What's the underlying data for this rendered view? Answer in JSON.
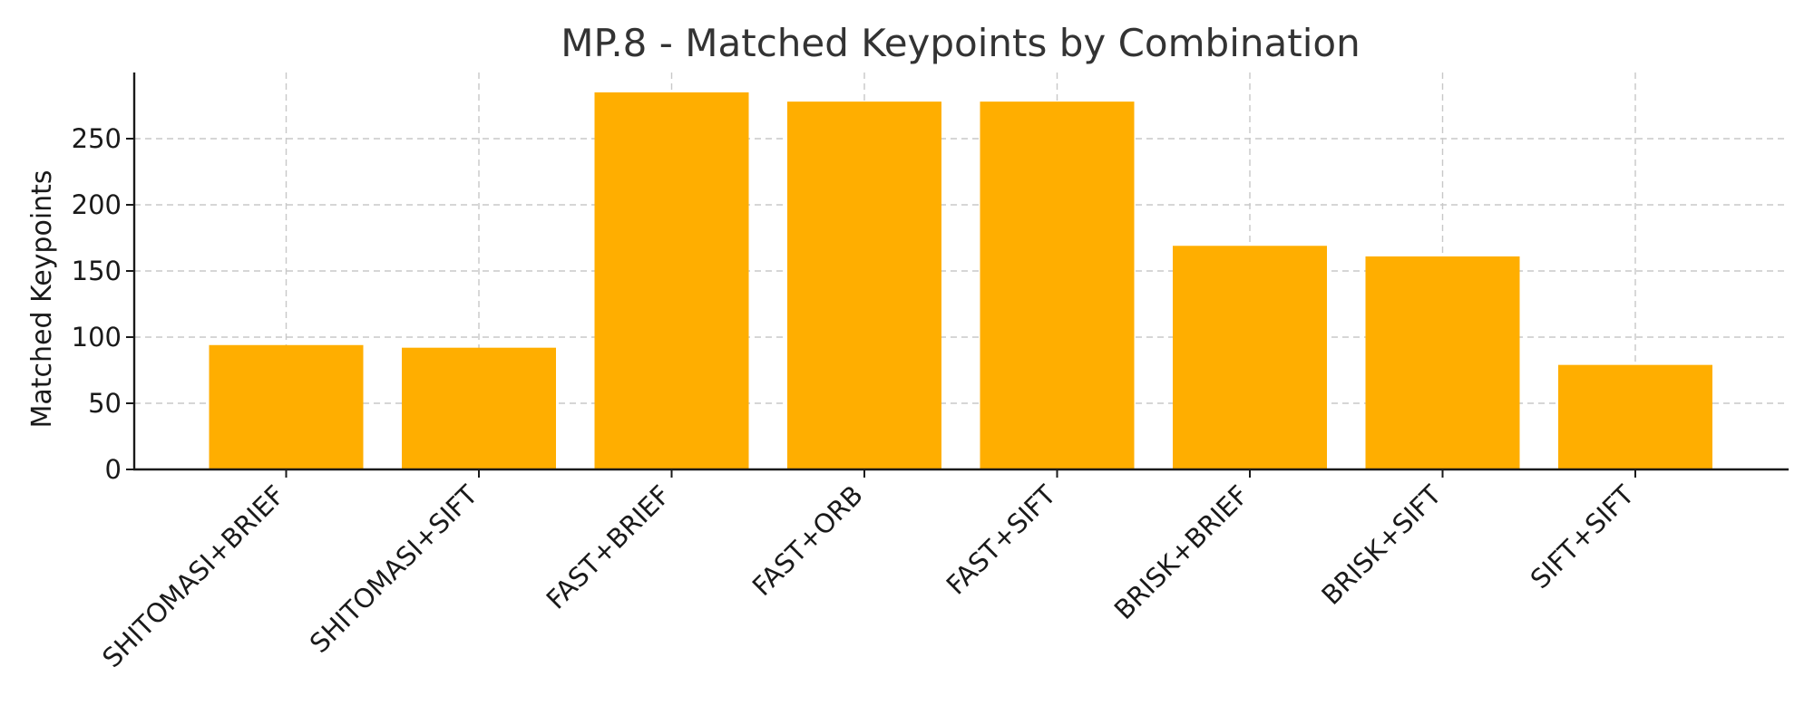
{
  "chart_data": {
    "type": "bar",
    "title": "MP.8 - Matched Keypoints by Combination",
    "xlabel": "",
    "ylabel": "Matched Keypoints",
    "categories": [
      "SHITOMASI+BRIEF",
      "SHITOMASI+SIFT",
      "FAST+BRIEF",
      "FAST+ORB",
      "FAST+SIFT",
      "BRISK+BRIEF",
      "BRISK+SIFT",
      "SIFT+SIFT"
    ],
    "values": [
      94,
      92,
      285,
      278,
      278,
      169,
      161,
      79
    ],
    "ylim": [
      0,
      300
    ],
    "yticks": [
      0,
      50,
      100,
      150,
      200,
      250
    ],
    "grid": true,
    "legend": "none",
    "bar_color": "#FFAE00"
  }
}
